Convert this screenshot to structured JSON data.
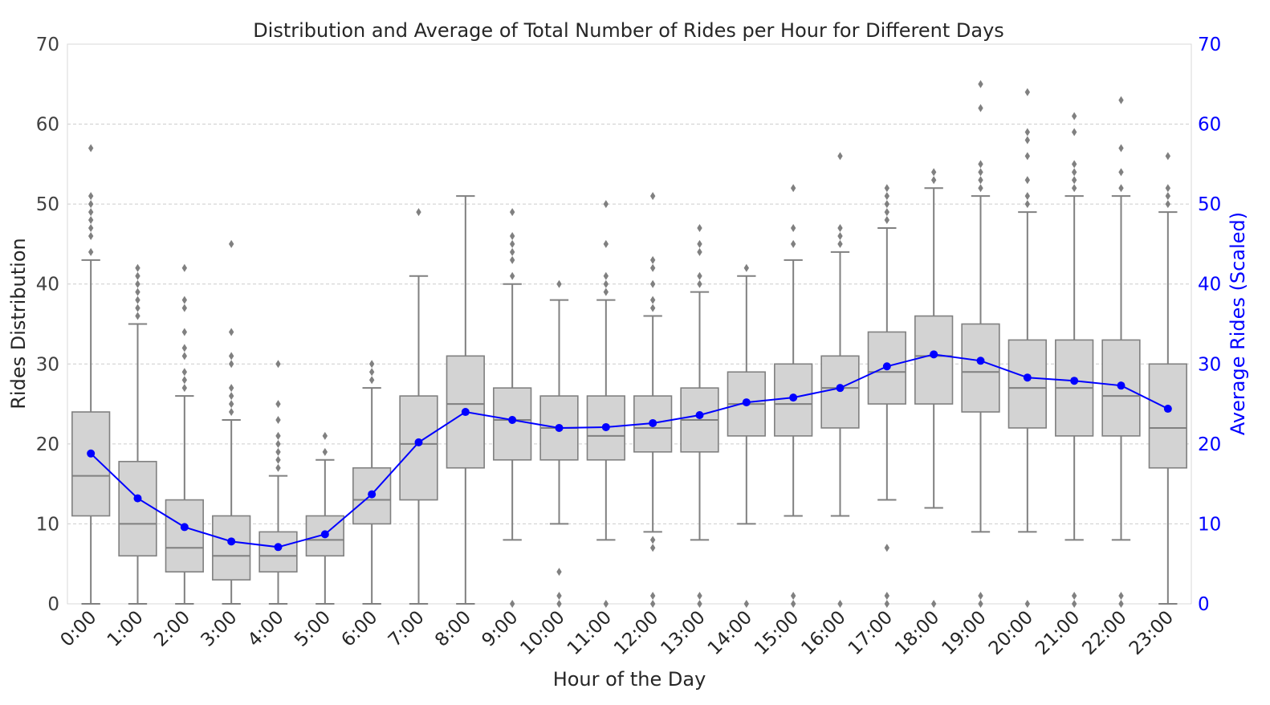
{
  "chart_data": {
    "type": "box",
    "title": "Distribution and Average of Total Number of Rides per Hour for Different Days",
    "xlabel": "Hour of the Day",
    "ylabel": "Rides Distribution",
    "y2label": "Average Rides (Scaled)",
    "ylim": [
      0,
      70
    ],
    "y2lim": [
      0,
      70
    ],
    "yticks": [
      0,
      10,
      20,
      30,
      40,
      50,
      60,
      70
    ],
    "grid": "y dashed",
    "colors": {
      "box": "#d3d3d3",
      "box_edge": "#808080",
      "outlier": "#808080",
      "line": "#0000ff",
      "right_axis": "#0000ff",
      "grid": "#cccccc"
    },
    "categories": [
      "0:00",
      "1:00",
      "2:00",
      "3:00",
      "4:00",
      "5:00",
      "6:00",
      "7:00",
      "8:00",
      "9:00",
      "10:00",
      "11:00",
      "12:00",
      "13:00",
      "14:00",
      "15:00",
      "16:00",
      "17:00",
      "18:00",
      "19:00",
      "20:00",
      "21:00",
      "22:00",
      "23:00"
    ],
    "boxes": [
      {
        "whislo": 0,
        "q1": 11,
        "med": 16,
        "q3": 24,
        "whishi": 43,
        "fliers": [
          44,
          46,
          47,
          48,
          49,
          50,
          51,
          57
        ]
      },
      {
        "whislo": 0,
        "q1": 6,
        "med": 10,
        "q3": 17.8,
        "whishi": 35,
        "fliers": [
          36,
          37,
          38,
          39,
          40,
          41,
          42
        ]
      },
      {
        "whislo": 0,
        "q1": 4,
        "med": 7,
        "q3": 13,
        "whishi": 26,
        "fliers": [
          27,
          28,
          29,
          31,
          32,
          34,
          37,
          38,
          42
        ]
      },
      {
        "whislo": 0,
        "q1": 3,
        "med": 6,
        "q3": 11,
        "whishi": 23,
        "fliers": [
          24,
          25,
          26,
          27,
          30,
          31,
          34,
          45
        ]
      },
      {
        "whislo": 0,
        "q1": 4,
        "med": 6,
        "q3": 9,
        "whishi": 16,
        "fliers": [
          17,
          18,
          19,
          20,
          21,
          23,
          25,
          30
        ]
      },
      {
        "whislo": 0,
        "q1": 6,
        "med": 8,
        "q3": 11,
        "whishi": 18,
        "fliers": [
          19,
          21
        ]
      },
      {
        "whislo": 0,
        "q1": 10,
        "med": 13,
        "q3": 17,
        "whishi": 27,
        "fliers": [
          28,
          29,
          30
        ]
      },
      {
        "whislo": 0,
        "q1": 13,
        "med": 20,
        "q3": 26,
        "whishi": 41,
        "fliers": [
          49
        ]
      },
      {
        "whislo": 0,
        "q1": 17,
        "med": 25,
        "q3": 31,
        "whishi": 51,
        "fliers": []
      },
      {
        "whislo": 8,
        "q1": 18,
        "med": 23,
        "q3": 27,
        "whishi": 40,
        "fliers": [
          0,
          41,
          43,
          44,
          45,
          46,
          49
        ]
      },
      {
        "whislo": 10,
        "q1": 18,
        "med": 22,
        "q3": 26,
        "whishi": 38,
        "fliers": [
          0,
          1,
          4,
          40
        ]
      },
      {
        "whislo": 8,
        "q1": 18,
        "med": 21,
        "q3": 26,
        "whishi": 38,
        "fliers": [
          0,
          39,
          40,
          41,
          45,
          50
        ]
      },
      {
        "whislo": 9,
        "q1": 19,
        "med": 22,
        "q3": 26,
        "whishi": 36,
        "fliers": [
          0,
          1,
          7,
          8,
          37,
          38,
          40,
          42,
          43,
          51
        ]
      },
      {
        "whislo": 8,
        "q1": 19,
        "med": 23,
        "q3": 27,
        "whishi": 39,
        "fliers": [
          0,
          1,
          40,
          41,
          44,
          45,
          47
        ]
      },
      {
        "whislo": 10,
        "q1": 21,
        "med": 25,
        "q3": 29,
        "whishi": 41,
        "fliers": [
          0,
          42
        ]
      },
      {
        "whislo": 11,
        "q1": 21,
        "med": 25,
        "q3": 30,
        "whishi": 43,
        "fliers": [
          0,
          1,
          45,
          47,
          52
        ]
      },
      {
        "whislo": 11,
        "q1": 22,
        "med": 27,
        "q3": 31,
        "whishi": 44,
        "fliers": [
          0,
          45,
          46,
          47,
          56
        ]
      },
      {
        "whislo": 13,
        "q1": 25,
        "med": 29,
        "q3": 34,
        "whishi": 47,
        "fliers": [
          0,
          1,
          7,
          48,
          49,
          50,
          51,
          52
        ]
      },
      {
        "whislo": 12,
        "q1": 25,
        "med": 31,
        "q3": 36,
        "whishi": 52,
        "fliers": [
          0,
          53,
          54
        ]
      },
      {
        "whislo": 9,
        "q1": 24,
        "med": 29,
        "q3": 35,
        "whishi": 51,
        "fliers": [
          0,
          1,
          52,
          53,
          54,
          55,
          62,
          65
        ]
      },
      {
        "whislo": 9,
        "q1": 22,
        "med": 27,
        "q3": 33,
        "whishi": 49,
        "fliers": [
          0,
          50,
          51,
          53,
          56,
          58,
          59,
          64
        ]
      },
      {
        "whislo": 8,
        "q1": 21,
        "med": 27,
        "q3": 33,
        "whishi": 51,
        "fliers": [
          0,
          1,
          52,
          53,
          54,
          55,
          59,
          61
        ]
      },
      {
        "whislo": 8,
        "q1": 21,
        "med": 26,
        "q3": 33,
        "whishi": 51,
        "fliers": [
          0,
          1,
          52,
          54,
          57,
          63
        ]
      },
      {
        "whislo": 0,
        "q1": 17,
        "med": 22,
        "q3": 30,
        "whishi": 49,
        "fliers": [
          50,
          51,
          52,
          56
        ]
      }
    ],
    "average_line": [
      18.8,
      13.2,
      9.6,
      7.8,
      7.1,
      8.7,
      13.7,
      20.2,
      24.0,
      23.0,
      22.0,
      22.1,
      22.6,
      23.6,
      25.2,
      25.8,
      27.0,
      29.7,
      31.2,
      30.4,
      28.3,
      27.9,
      27.3,
      24.4
    ]
  }
}
